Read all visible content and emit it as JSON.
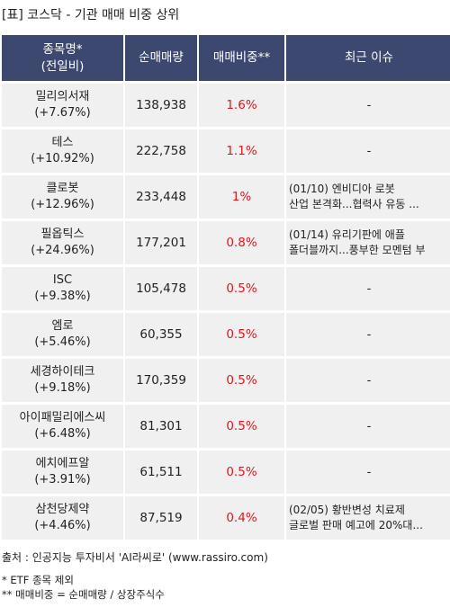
{
  "title": "[표] 코스닥 - 기관 매매 비중 상위",
  "headers": {
    "name_line1": "종목명*",
    "name_line2": "(전일비)",
    "volume": "순매매량",
    "ratio": "매매비중**",
    "issue": "최근 이슈"
  },
  "rows": [
    {
      "name": "밀리의서재",
      "change": "(+7.67%)",
      "volume": "138,938",
      "ratio": "1.6%",
      "issue_line1": "-",
      "issue_line2": ""
    },
    {
      "name": "테스",
      "change": "(+10.92%)",
      "volume": "222,758",
      "ratio": "1.1%",
      "issue_line1": "-",
      "issue_line2": ""
    },
    {
      "name": "클로봇",
      "change": "(+12.96%)",
      "volume": "233,448",
      "ratio": "1%",
      "issue_line1": "(01/10) 엔비디아 로봇",
      "issue_line2": "산업 본격화...협력사 유동 ..."
    },
    {
      "name": "필옵틱스",
      "change": "(+24.96%)",
      "volume": "177,201",
      "ratio": "0.8%",
      "issue_line1": "(01/14) 유리기판에 애플",
      "issue_line2": " 폴더블까지...풍부한 모멘텀 부"
    },
    {
      "name": "ISC",
      "change": "(+9.38%)",
      "volume": "105,478",
      "ratio": "0.5%",
      "issue_line1": "-",
      "issue_line2": ""
    },
    {
      "name": "엠로",
      "change": "(+5.46%)",
      "volume": "60,355",
      "ratio": "0.5%",
      "issue_line1": "-",
      "issue_line2": ""
    },
    {
      "name": "세경하이테크",
      "change": "(+9.18%)",
      "volume": "170,359",
      "ratio": "0.5%",
      "issue_line1": "-",
      "issue_line2": ""
    },
    {
      "name": "아이패밀리에스씨",
      "change": "(+6.48%)",
      "volume": "81,301",
      "ratio": "0.5%",
      "issue_line1": "-",
      "issue_line2": ""
    },
    {
      "name": "에치에프알",
      "change": "(+3.91%)",
      "volume": "61,511",
      "ratio": "0.5%",
      "issue_line1": "-",
      "issue_line2": ""
    },
    {
      "name": "삼천당제약",
      "change": "(+4.46%)",
      "volume": "87,519",
      "ratio": "0.4%",
      "issue_line1": "(02/05) 황반변성 치료제",
      "issue_line2": " 글로벌 판매 예고에 20%대..."
    }
  ],
  "source": "출처 : 인공지능 투자비서 'AI라씨로' (www.rassiro.com)",
  "note1": "* ETF 종목 제외",
  "note2": "** 매매비중 = 순매매량 / 상장주식수",
  "colors": {
    "header_bg": "#3d4870",
    "ratio_text": "#e0161d",
    "cell_bg": "#f0f0f0"
  }
}
